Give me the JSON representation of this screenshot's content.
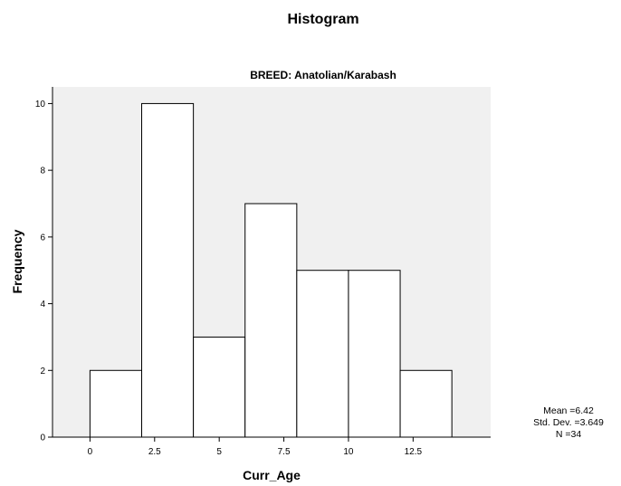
{
  "chart_data": {
    "type": "bar",
    "title": "Histogram",
    "subtitle": "BREED: Anatolian/Karabash",
    "xlabel": "Curr_Age",
    "ylabel": "Frequency",
    "bins": [
      {
        "start": 0,
        "end": 2,
        "count": 2
      },
      {
        "start": 2,
        "end": 4,
        "count": 10
      },
      {
        "start": 4,
        "end": 6,
        "count": 3
      },
      {
        "start": 6,
        "end": 8,
        "count": 7
      },
      {
        "start": 8,
        "end": 10,
        "count": 5
      },
      {
        "start": 10,
        "end": 12,
        "count": 5
      },
      {
        "start": 12,
        "end": 14,
        "count": 2
      }
    ],
    "x_ticks": [
      0,
      2.5,
      5,
      7.5,
      10,
      12.5
    ],
    "x_tick_labels": [
      "0",
      "2.5",
      "5",
      "7.5",
      "10",
      "12.5"
    ],
    "y_ticks": [
      0,
      2,
      4,
      6,
      8,
      10
    ],
    "y_tick_labels": [
      "0",
      "2",
      "4",
      "6",
      "8",
      "10"
    ],
    "xlim": [
      -1.45,
      15.5
    ],
    "ylim": [
      0,
      10.5
    ],
    "grid": false,
    "stats": {
      "mean": "Mean =6.42",
      "std_dev": "Std. Dev. =3.649",
      "n": "N =34"
    },
    "colors": {
      "plot_background": "#f0f0f0",
      "bar_fill": "#ffffff",
      "bar_stroke": "#000000"
    }
  }
}
